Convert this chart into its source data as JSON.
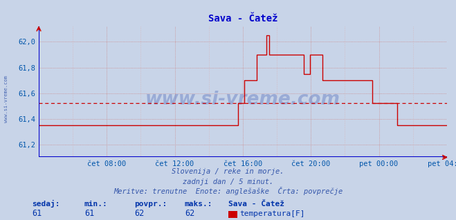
{
  "title": "Sava - Čatež",
  "title_color": "#0000cc",
  "bg_color": "#c8d4e8",
  "plot_bg_color": "#c8d4e8",
  "line_color": "#cc0000",
  "avg_line_color": "#cc0000",
  "avg_line_value": 61.52,
  "grid_color_major": "#cc8888",
  "grid_color_minor": "#ddaaaa",
  "axis_color": "#0000cc",
  "tick_color": "#0055aa",
  "xlim": [
    0,
    288
  ],
  "ylim": [
    61.1,
    62.12
  ],
  "yticks": [
    61.2,
    61.4,
    61.6,
    61.8,
    62.0
  ],
  "ytick_labels": [
    "61,2",
    "61,4",
    "61,6",
    "61,8",
    "62,0"
  ],
  "xtick_positions": [
    48,
    96,
    144,
    192,
    240,
    288
  ],
  "xtick_labels": [
    "čet 08:00",
    "čet 12:00",
    "čet 16:00",
    "čet 20:00",
    "pet 00:00",
    "pet 04:00"
  ],
  "watermark": "www.si-vreme.com",
  "footer_lines": [
    "Slovenija / reke in morje.",
    "zadnji dan / 5 minut.",
    "Meritve: trenutne  Enote: anglešaške  Črta: povprečje"
  ],
  "footer_color": "#3355aa",
  "legend_labels": [
    "sedaj:",
    "min.:",
    "povpr.:",
    "maks.:"
  ],
  "legend_values": [
    "61",
    "61",
    "62",
    "62"
  ],
  "legend_series": "Sava - Čatež",
  "legend_temp_label": "temperatura[F]",
  "legend_color": "#0033aa",
  "left_label": "www.si-vreme.com",
  "series": [
    61.35,
    61.35,
    61.35,
    61.35,
    61.35,
    61.35,
    61.35,
    61.35,
    61.35,
    61.35,
    61.35,
    61.35,
    61.35,
    61.35,
    61.35,
    61.35,
    61.35,
    61.35,
    61.35,
    61.35,
    61.35,
    61.35,
    61.35,
    61.35,
    61.35,
    61.35,
    61.35,
    61.35,
    61.35,
    61.35,
    61.35,
    61.35,
    61.35,
    61.35,
    61.35,
    61.35,
    61.35,
    61.35,
    61.35,
    61.35,
    61.35,
    61.35,
    61.35,
    61.35,
    61.35,
    61.35,
    61.35,
    61.35,
    61.35,
    61.35,
    61.35,
    61.35,
    61.35,
    61.35,
    61.35,
    61.35,
    61.35,
    61.35,
    61.35,
    61.35,
    61.35,
    61.35,
    61.35,
    61.35,
    61.35,
    61.35,
    61.35,
    61.35,
    61.35,
    61.35,
    61.35,
    61.35,
    61.35,
    61.35,
    61.35,
    61.35,
    61.35,
    61.35,
    61.35,
    61.35,
    61.35,
    61.35,
    61.35,
    61.35,
    61.35,
    61.35,
    61.35,
    61.35,
    61.35,
    61.35,
    61.35,
    61.35,
    61.35,
    61.35,
    61.35,
    61.35,
    61.35,
    61.35,
    61.35,
    61.35,
    61.35,
    61.35,
    61.35,
    61.35,
    61.35,
    61.35,
    61.35,
    61.35,
    61.35,
    61.35,
    61.35,
    61.35,
    61.35,
    61.35,
    61.35,
    61.35,
    61.35,
    61.35,
    61.35,
    61.35,
    61.35,
    61.35,
    61.35,
    61.35,
    61.35,
    61.35,
    61.35,
    61.35,
    61.52,
    61.52,
    61.52,
    61.52,
    61.7,
    61.7,
    61.7,
    61.7,
    61.7,
    61.7,
    61.7,
    61.7,
    61.9,
    61.9,
    61.9,
    61.9,
    61.9,
    61.9,
    62.05,
    62.05,
    61.9,
    61.9,
    61.9,
    61.9,
    61.9,
    61.9,
    61.9,
    61.9,
    61.9,
    61.9,
    61.9,
    61.9,
    61.9,
    61.9,
    61.9,
    61.9,
    61.9,
    61.9,
    61.9,
    61.9,
    61.9,
    61.9,
    61.75,
    61.75,
    61.75,
    61.75,
    61.9,
    61.9,
    61.9,
    61.9,
    61.9,
    61.9,
    61.9,
    61.9,
    61.7,
    61.7,
    61.7,
    61.7,
    61.7,
    61.7,
    61.7,
    61.7,
    61.7,
    61.7,
    61.7,
    61.7,
    61.7,
    61.7,
    61.7,
    61.7,
    61.7,
    61.7,
    61.7,
    61.7,
    61.7,
    61.7,
    61.7,
    61.7,
    61.7,
    61.7,
    61.7,
    61.7,
    61.7,
    61.7,
    61.7,
    61.7,
    61.52,
    61.52,
    61.52,
    61.52,
    61.52,
    61.52,
    61.52,
    61.52,
    61.52,
    61.52,
    61.52,
    61.52,
    61.52,
    61.52,
    61.52,
    61.52,
    61.35,
    61.35,
    61.35,
    61.35,
    61.35,
    61.35,
    61.35,
    61.35,
    61.35,
    61.35,
    61.35,
    61.35,
    61.35,
    61.35,
    61.35,
    61.35,
    61.35,
    61.35,
    61.35,
    61.35,
    61.35,
    61.35,
    61.35,
    61.35,
    61.35,
    61.35,
    61.35,
    61.35,
    61.35,
    61.35,
    61.35,
    61.35,
    61.35
  ]
}
